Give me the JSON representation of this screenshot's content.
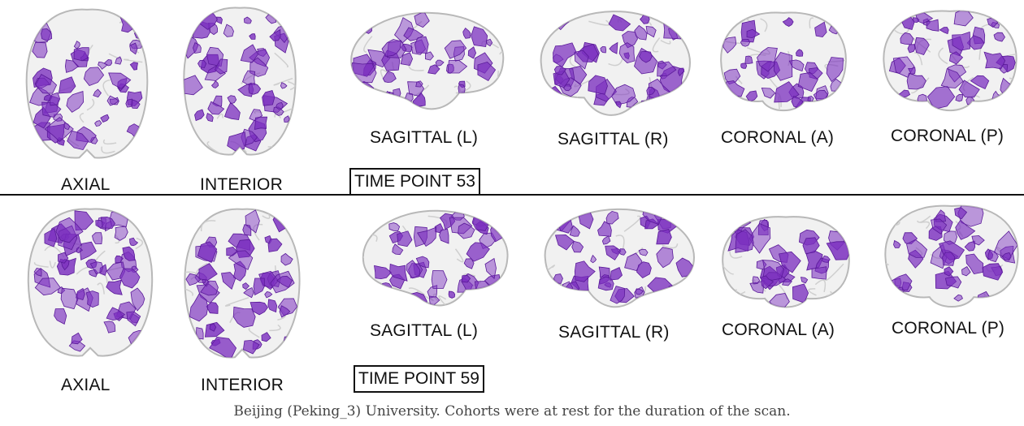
{
  "colors": {
    "activation": "#7b2fbf",
    "activation_edge": "#5a1a99",
    "brain_shell": "#e6e6e6",
    "brain_edge": "#b8b8b8"
  },
  "top_row": {
    "views": [
      "AXIAL",
      "INTERIOR",
      "SAGITTAL (L)",
      "SAGITTAL (R)",
      "CORONAL (A)",
      "CORONAL (P)"
    ],
    "time_point": "TIME POINT 53"
  },
  "bottom_row": {
    "views": [
      "AXIAL",
      "INTERIOR",
      "SAGITTAL (L)",
      "SAGITTAL (R)",
      "CORONAL (A)",
      "CORONAL (P)"
    ],
    "time_point": "TIME POINT 59"
  },
  "caption": "Beijing (Peking_3) University. Cohorts were at rest for the duration of the scan."
}
